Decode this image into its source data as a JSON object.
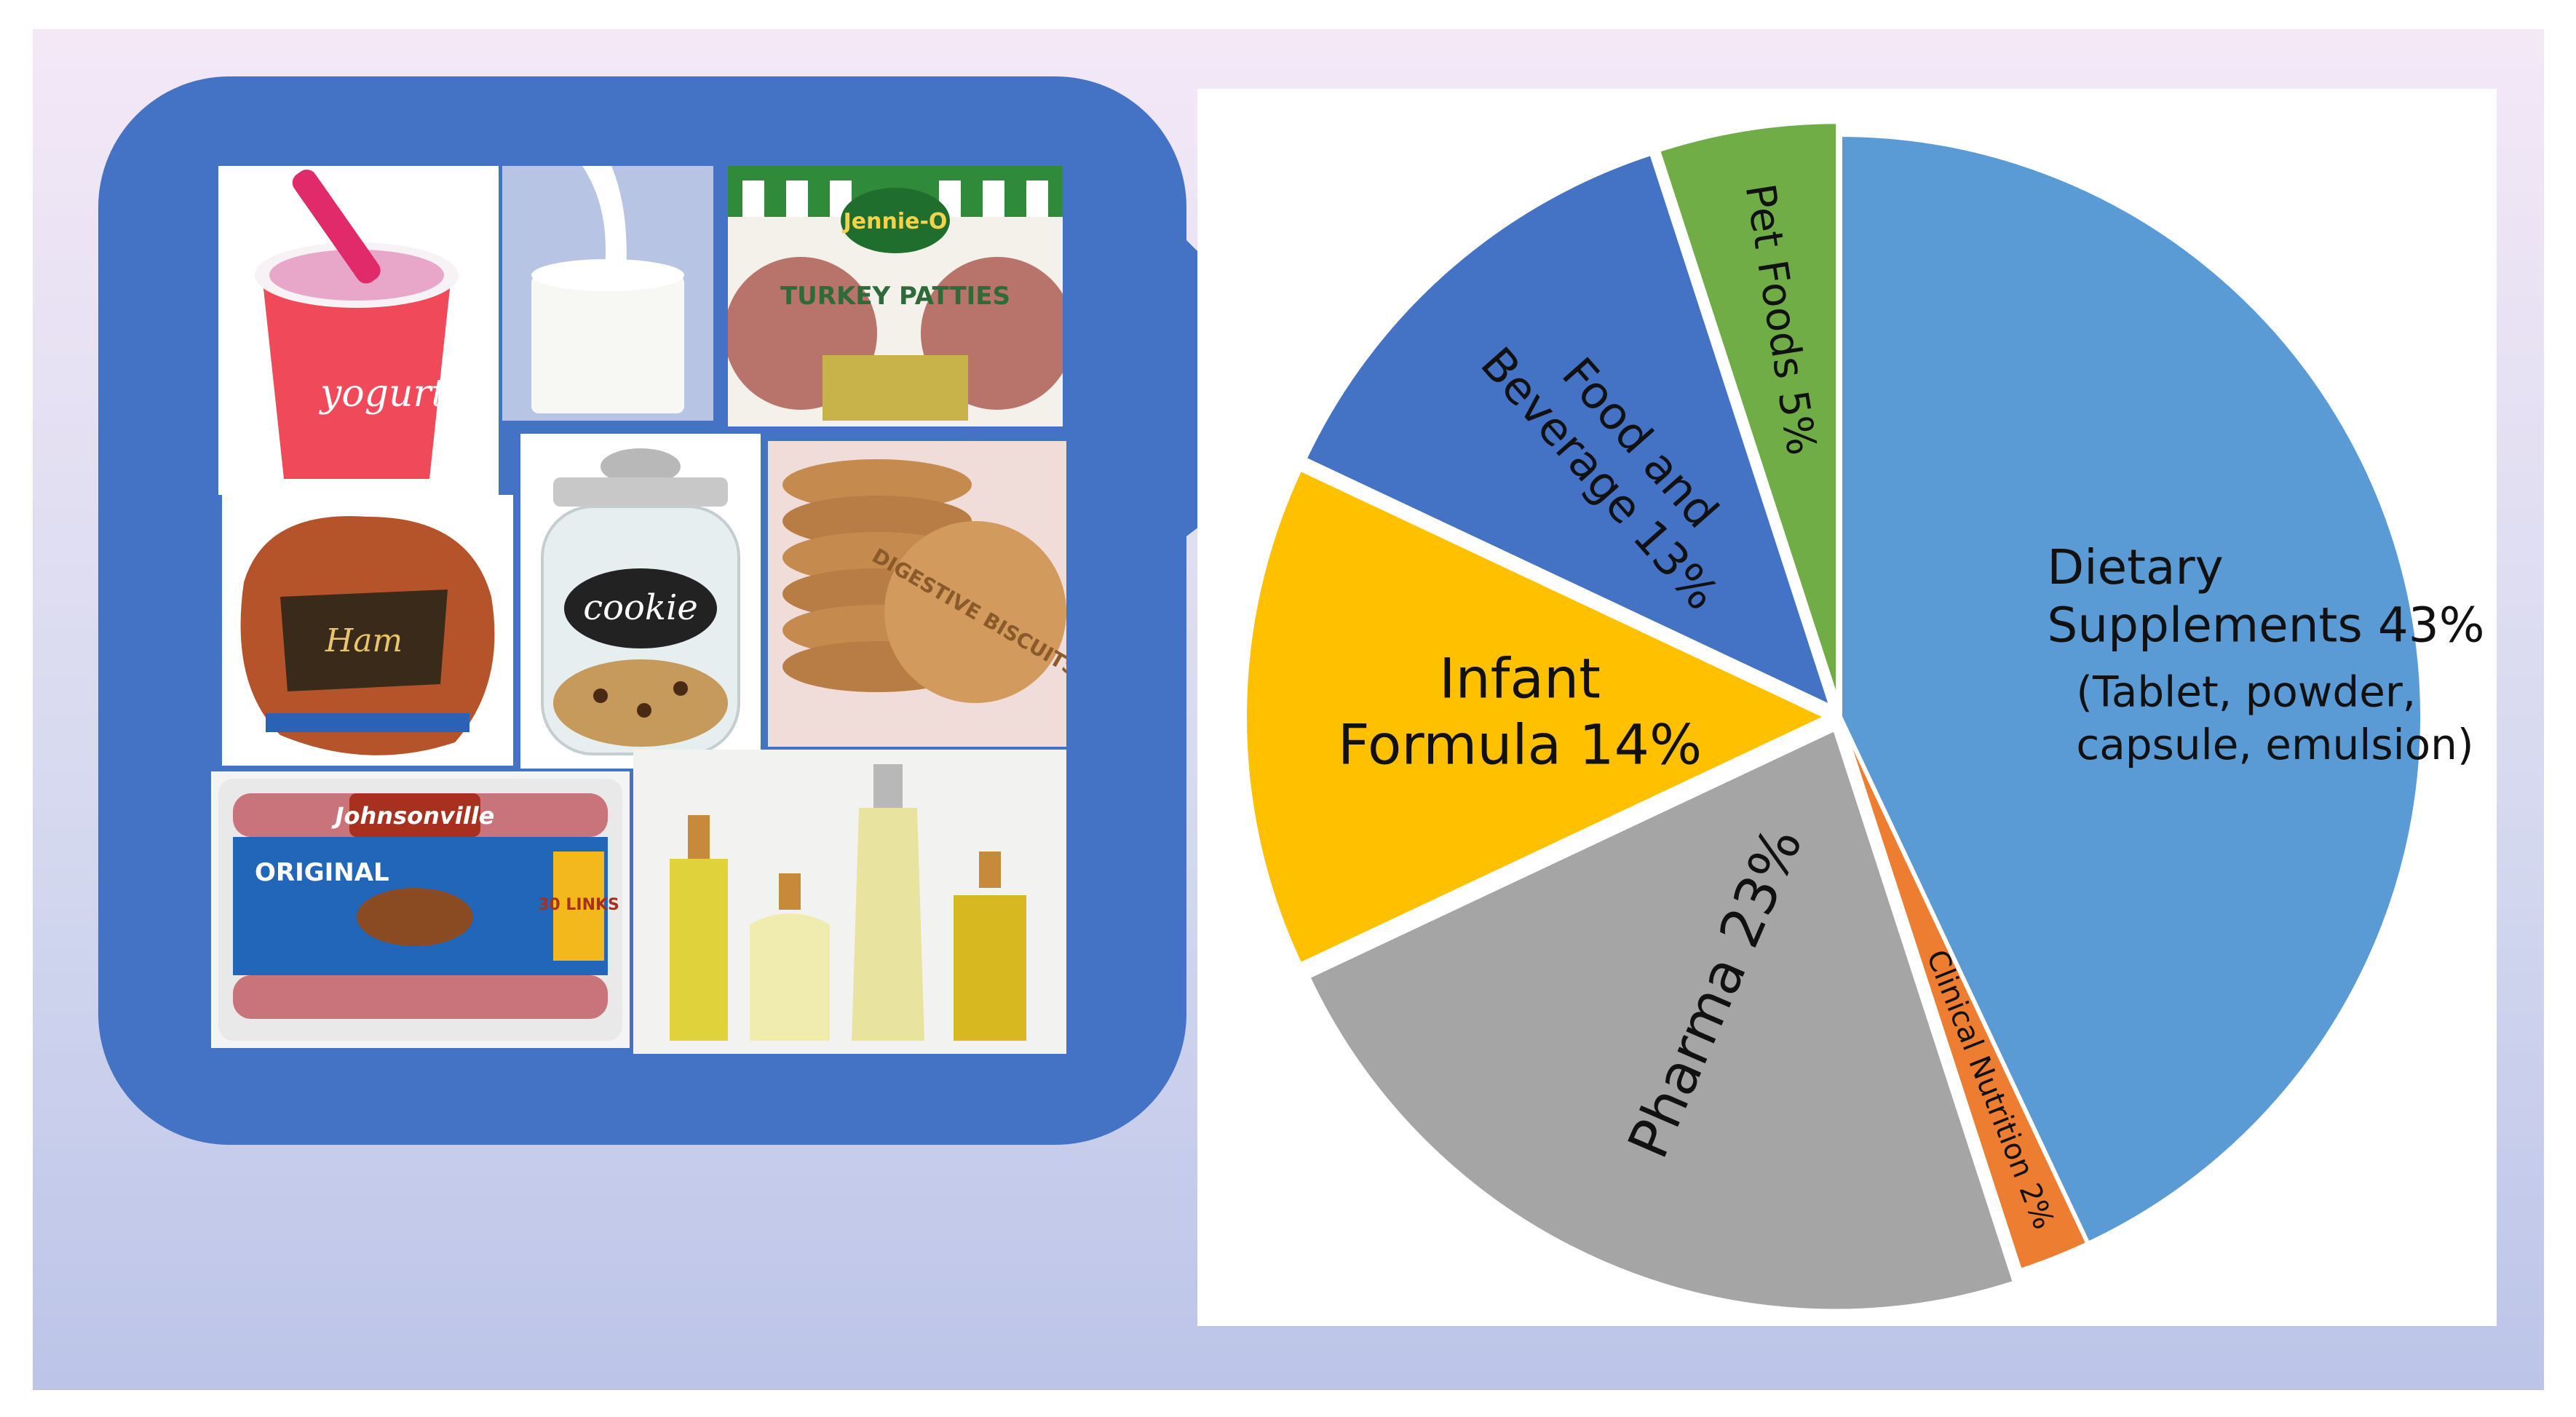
{
  "chart_data": {
    "type": "pie",
    "slices": [
      {
        "lines": [
          "Dietary",
          "Supplements 43%"
        ],
        "sub": [
          "(Tablet, powder,",
          "capsule, emulsion)"
        ],
        "value": 43,
        "color": "#5b9bd5"
      },
      {
        "lines": [
          "Clinical Nutrition 2%"
        ],
        "value": 2,
        "color": "#ed7d31"
      },
      {
        "lines": [
          "Pharma 23%"
        ],
        "value": 23,
        "color": "#a5a5a5"
      },
      {
        "lines": [
          "Infant",
          "Formula 14%"
        ],
        "value": 14,
        "color": "#ffc000"
      },
      {
        "lines": [
          "Food and",
          "Beverage 13%"
        ],
        "value": 13,
        "color": "#4472c4"
      },
      {
        "lines": [
          "Pet Foods 5%"
        ],
        "value": 5,
        "color": "#70ad47"
      }
    ]
  },
  "food_images": [
    {
      "icon": "yogurt-cup-icon",
      "text": "yogurt"
    },
    {
      "icon": "milk-glass-icon",
      "text": ""
    },
    {
      "icon": "turkey-patties-package-icon",
      "text": "Jennie-O",
      "text2": "TURKEY PATTIES"
    },
    {
      "icon": "ham-icon",
      "text": "Ham"
    },
    {
      "icon": "cookie-jar-icon",
      "text": "cookie"
    },
    {
      "icon": "digestive-biscuits-icon",
      "text": "DIGESTIVE BISCUITS"
    },
    {
      "icon": "sausage-package-icon",
      "text": "Johnsonville",
      "text2": "ORIGINAL",
      "text3": "30 LINKS"
    },
    {
      "icon": "oil-bottles-icon",
      "text": ""
    }
  ],
  "colors": {
    "bubble": "#4472c4",
    "background_top": "#f4e8f6",
    "background_bottom": "#bcc4e8"
  }
}
